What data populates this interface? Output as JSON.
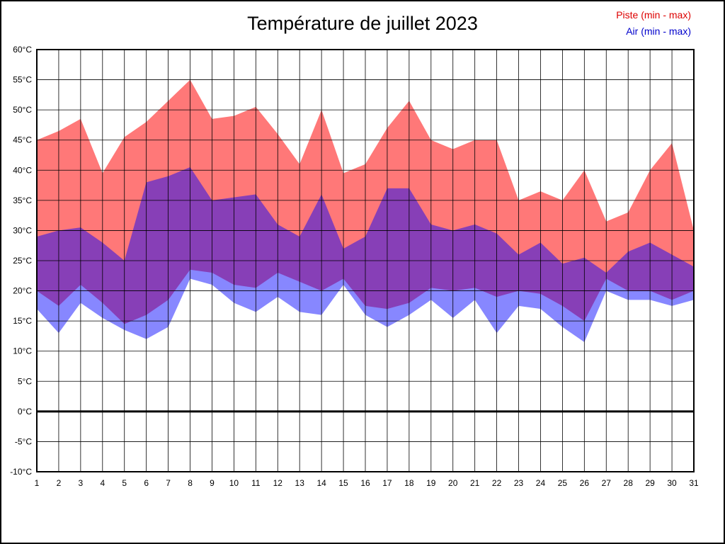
{
  "chart_data": {
    "type": "area",
    "title": "Température de juillet 2023",
    "x": [
      1,
      2,
      3,
      4,
      5,
      6,
      7,
      8,
      9,
      10,
      11,
      12,
      13,
      14,
      15,
      16,
      17,
      18,
      19,
      20,
      21,
      22,
      23,
      24,
      25,
      26,
      27,
      28,
      29,
      30,
      31
    ],
    "xlabel": "",
    "ylabel": "",
    "ylim": [
      -10,
      60
    ],
    "y_tick_step": 5,
    "y_tick_labels": [
      "60°C",
      "55°C",
      "50°C",
      "45°C",
      "40°C",
      "35°C",
      "30°C",
      "25°C",
      "20°C",
      "15°C",
      "10°C",
      "5°C",
      "0°C",
      "-5°C",
      "-10°C"
    ],
    "grid": true,
    "zero_line_value": 0,
    "legend_position": "top-right",
    "series": [
      {
        "name": "Piste (min - max)",
        "color": "#ff0000",
        "opacity": 0.53,
        "legend_color": "#dd0000",
        "min": [
          20,
          17.5,
          21,
          18,
          14.5,
          16,
          18.5,
          23.5,
          23,
          21,
          20.5,
          23,
          21.5,
          20,
          22,
          17.5,
          17,
          18,
          20.5,
          20,
          20.5,
          19,
          20,
          19.5,
          17.5,
          15,
          22,
          20,
          20,
          18.5,
          20
        ],
        "max": [
          45,
          46.5,
          48.5,
          39.5,
          45.5,
          48,
          51.5,
          55,
          48.5,
          49,
          50.5,
          46,
          41,
          50,
          39.5,
          41,
          47,
          51.5,
          45,
          43.5,
          45,
          45,
          35,
          36.5,
          35,
          40,
          31.5,
          33,
          40,
          44.5,
          30
        ]
      },
      {
        "name": "Air (min - max)",
        "color": "#0000ff",
        "opacity": 0.47,
        "legend_color": "#0000cc",
        "min": [
          17,
          13,
          18,
          15.5,
          13.5,
          12,
          14,
          22,
          21,
          18,
          16.5,
          19,
          16.5,
          16,
          21,
          16,
          14,
          16,
          18.5,
          15.5,
          18.5,
          13,
          17.5,
          17,
          14,
          11.5,
          20,
          18.5,
          18.5,
          17.5,
          18.5
        ],
        "max": [
          29,
          30,
          30.5,
          28,
          25,
          38,
          39,
          40.5,
          35,
          35.5,
          36,
          31,
          29,
          36,
          27,
          29,
          37,
          37,
          31,
          30,
          31,
          29.5,
          26,
          28,
          24.5,
          25.5,
          23,
          26.5,
          28,
          26,
          24
        ]
      }
    ]
  }
}
